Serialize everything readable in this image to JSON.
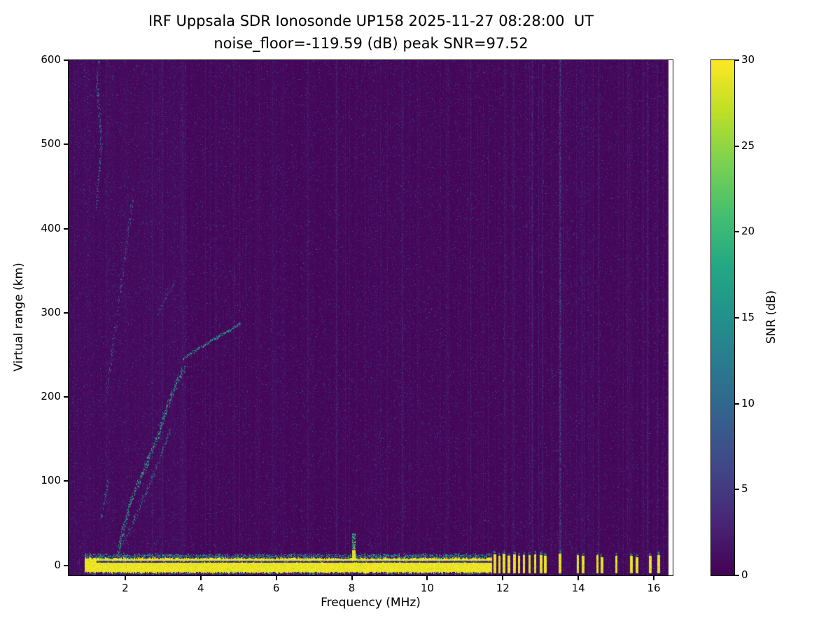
{
  "chart_data": {
    "type": "heatmap",
    "title": "IRF Uppsala SDR Ionosonde UP158 2025-11-27 08:28:00  UT",
    "subtitle": "noise_floor=-119.59 (dB) peak SNR=97.52",
    "xlabel": "Frequency (MHz)",
    "ylabel": "Virtual range (km)",
    "xlim": [
      0.5,
      16.5
    ],
    "ylim": [
      -12,
      600
    ],
    "x_ticks": [
      2,
      4,
      6,
      8,
      10,
      12,
      14,
      16
    ],
    "y_ticks": [
      0,
      100,
      200,
      300,
      400,
      500,
      600
    ],
    "grid": false,
    "colorbar": {
      "label": "SNR (dB)",
      "min": 0,
      "max": 30,
      "ticks": [
        0,
        5,
        10,
        15,
        20,
        25,
        30
      ]
    },
    "colormap": {
      "name": "viridis",
      "stops": [
        "#440154",
        "#482475",
        "#414487",
        "#355f8d",
        "#2a788e",
        "#21918c",
        "#22a884",
        "#44bf70",
        "#7ad151",
        "#bddf26",
        "#fde725"
      ]
    },
    "noise": {
      "base": 0.5,
      "speckle_prob": 0.045,
      "left_boost_below_mhz": 3.6
    },
    "features": {
      "data_freq_end": 16.38,
      "ground_band": {
        "name": "ground-return band (saturated, ~30 dB)",
        "f_start": 0.93,
        "f_end": 11.72,
        "top_km": 8,
        "bottom_km": -8,
        "gap_km": 4.2,
        "snr": 30
      },
      "spike": {
        "name": "narrow echo spike",
        "f": 8.05,
        "width": 0.08,
        "top_km": 38
      },
      "pulse_columns": [
        [
          11.78,
          13
        ],
        [
          11.9,
          11
        ],
        [
          12.02,
          14
        ],
        [
          12.15,
          11
        ],
        [
          12.3,
          13
        ],
        [
          12.42,
          11
        ],
        [
          12.55,
          12
        ],
        [
          12.7,
          12
        ],
        [
          12.85,
          13
        ],
        [
          13.0,
          12
        ],
        [
          13.12,
          11
        ],
        [
          13.5,
          14
        ],
        [
          13.98,
          12
        ],
        [
          14.12,
          11
        ],
        [
          14.5,
          12
        ],
        [
          14.62,
          10
        ],
        [
          15.0,
          11
        ],
        [
          15.4,
          11
        ],
        [
          15.55,
          10
        ],
        [
          15.9,
          11
        ],
        [
          16.12,
          12
        ]
      ],
      "rfi_lines": [
        {
          "f": 13.52,
          "amp": 9,
          "sigma": 0.025
        },
        {
          "f": 12.78,
          "amp": 4,
          "sigma": 0.02
        },
        {
          "f": 12.3,
          "amp": 3,
          "sigma": 0.02
        },
        {
          "f": 12.05,
          "amp": 3,
          "sigma": 0.02
        },
        {
          "f": 13.05,
          "amp": 3.5,
          "sigma": 0.02
        },
        {
          "f": 14.1,
          "amp": 3,
          "sigma": 0.02
        },
        {
          "f": 14.55,
          "amp": 2.5,
          "sigma": 0.02
        },
        {
          "f": 15.3,
          "amp": 2.5,
          "sigma": 0.02
        },
        {
          "f": 15.85,
          "amp": 2.5,
          "sigma": 0.02
        },
        {
          "f": 16.1,
          "amp": 2.5,
          "sigma": 0.02
        },
        {
          "f": 6.85,
          "amp": 2.2,
          "sigma": 0.02
        },
        {
          "f": 7.6,
          "amp": 1.8,
          "sigma": 0.02
        },
        {
          "f": 9.35,
          "amp": 2.2,
          "sigma": 0.02
        },
        {
          "f": 10.55,
          "amp": 2.2,
          "sigma": 0.02
        },
        {
          "f": 11.15,
          "amp": 2.5,
          "sigma": 0.02
        },
        {
          "f": 5.5,
          "amp": 1.6,
          "sigma": 0.02
        },
        {
          "f": 4.4,
          "amp": 1.5,
          "sigma": 0.02
        }
      ],
      "echo_traces": [
        {
          "name": "oblique echo fan (main)",
          "points": [
            [
              1.8,
              12
            ],
            [
              1.95,
              45
            ],
            [
              2.15,
              78
            ],
            [
              2.4,
              104
            ],
            [
              2.62,
              128
            ],
            [
              2.87,
              155
            ],
            [
              3.1,
              188
            ],
            [
              3.34,
              216
            ],
            [
              3.55,
              236
            ]
          ],
          "snr": [
            9,
            22
          ],
          "spread_f": 0.07,
          "spread_km": 7,
          "density": 0.85
        },
        {
          "name": "oblique echo fan (lower)",
          "points": [
            [
              1.95,
              28
            ],
            [
              2.2,
              52
            ],
            [
              2.45,
              78
            ],
            [
              2.72,
              106
            ],
            [
              2.98,
              136
            ],
            [
              3.2,
              163
            ]
          ],
          "snr": [
            7,
            16
          ],
          "spread_f": 0.06,
          "spread_km": 6,
          "density": 0.5
        },
        {
          "name": "slanted echo 250-290 km",
          "points": [
            [
              3.52,
              246
            ],
            [
              3.9,
              257
            ],
            [
              4.3,
              268
            ],
            [
              4.72,
              279
            ],
            [
              5.05,
              288
            ]
          ],
          "snr": [
            10,
            20
          ],
          "spread_f": 0.03,
          "spread_km": 3,
          "density": 0.9
        },
        {
          "name": "high-range scatter near 1.3 MHz",
          "points": [
            [
              1.22,
              428
            ],
            [
              1.3,
              468
            ],
            [
              1.36,
              505
            ],
            [
              1.3,
              540
            ],
            [
              1.24,
              575
            ],
            [
              1.3,
              600
            ]
          ],
          "snr": [
            7,
            15
          ],
          "spread_f": 0.05,
          "spread_km": 9,
          "density": 0.4
        },
        {
          "name": "faint rising scatter",
          "points": [
            [
              1.5,
              205
            ],
            [
              1.65,
              255
            ],
            [
              1.8,
              305
            ],
            [
              1.95,
              355
            ],
            [
              2.08,
              400
            ],
            [
              2.18,
              432
            ]
          ],
          "snr": [
            6,
            12
          ],
          "spread_f": 0.06,
          "spread_km": 9,
          "density": 0.3
        },
        {
          "name": "faint patch ~300-340 km",
          "points": [
            [
              2.85,
              298
            ],
            [
              3.05,
              318
            ],
            [
              3.3,
              336
            ]
          ],
          "snr": [
            6,
            12
          ],
          "spread_f": 0.05,
          "spread_km": 6,
          "density": 0.3
        },
        {
          "name": "low-frequency scatter",
          "points": [
            [
              1.35,
              55
            ],
            [
              1.45,
              80
            ],
            [
              1.55,
              105
            ]
          ],
          "snr": [
            7,
            14
          ],
          "spread_f": 0.05,
          "spread_km": 6,
          "density": 0.4
        }
      ]
    }
  },
  "colors": {
    "background": "#ffffff",
    "axes": "#000000",
    "heat_low": "#440154",
    "heat_high": "#fde725"
  }
}
